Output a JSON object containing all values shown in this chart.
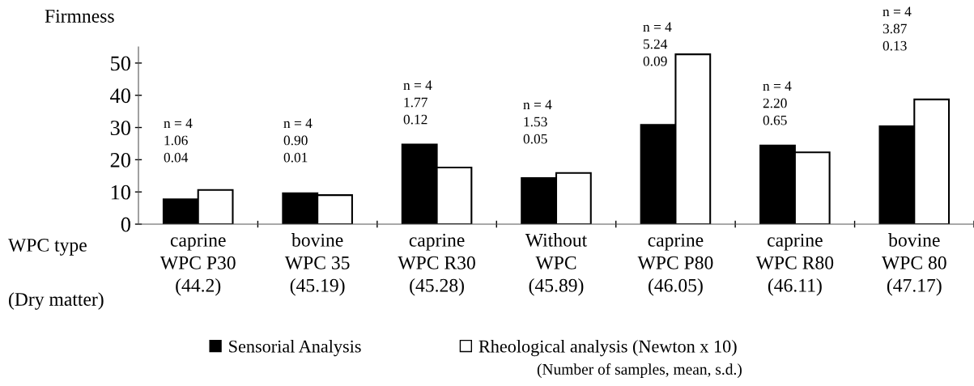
{
  "chart_data": {
    "type": "bar",
    "ylabel": "Firmness",
    "categories": [
      "caprine\nWPC P30\n(44.2)",
      "bovine\nWPC 35\n(45.19)",
      "caprine\nWPC R30\n(45.28)",
      "Without\nWPC\n(45.89)",
      "caprine\nWPC P80\n(46.05)",
      "caprine\nWPC R80\n(46.11)",
      "bovine\nWPC 80\n(47.17)"
    ],
    "series": [
      {
        "name": "Sensorial Analysis",
        "color": "#000000",
        "values": [
          7.7,
          9.6,
          24.7,
          14.3,
          30.8,
          24.4,
          30.4
        ]
      },
      {
        "name": "Rheological analysis (Newton x 10)",
        "color": "#ffffff",
        "values": [
          10.6,
          9.0,
          17.6,
          15.9,
          52.7,
          22.3,
          38.7
        ]
      }
    ],
    "ylim": [
      0,
      55
    ],
    "yticks": [
      0,
      10,
      20,
      30,
      40,
      50
    ],
    "grid": false,
    "legend": "bottom",
    "annotations": [
      "WPC type",
      "(Dry matter)",
      "(Number of samples, mean, s.d.)",
      "n = 4\n1.06\n0.04",
      "n = 4\n0.90\n0.01",
      "n = 4\n1.77\n0.12",
      "n = 4\n1.53\n0.05",
      "n = 4\n5.24\n0.09",
      "n = 4\n2.20\n0.65",
      "n = 4\n3.87\n0.13"
    ]
  }
}
